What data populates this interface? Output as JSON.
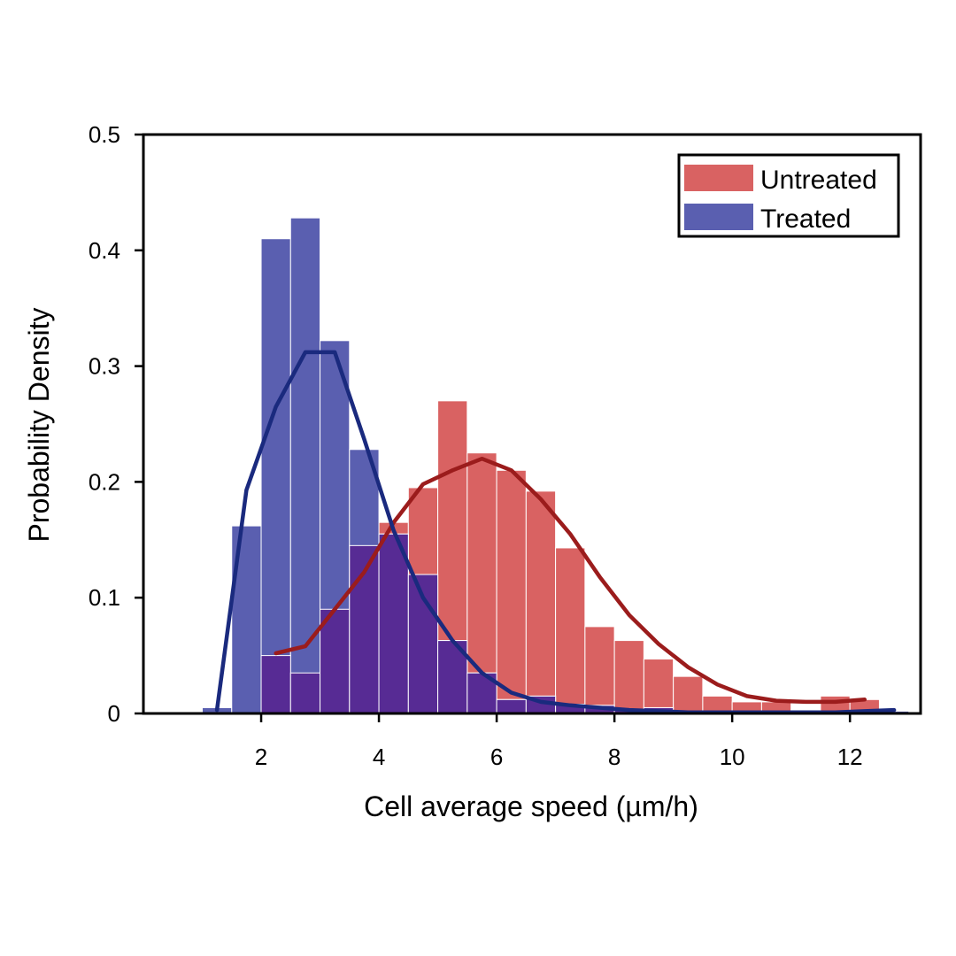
{
  "chart_data": {
    "type": "bar",
    "title": "",
    "xlabel": "Cell average speed (µm/h)",
    "ylabel": "Probability Density",
    "xlim": [
      0.0,
      13.2
    ],
    "ylim": [
      0,
      0.5
    ],
    "xticks": [
      2,
      4,
      6,
      8,
      10,
      12
    ],
    "yticks": [
      0,
      0.1,
      0.2,
      0.3,
      0.4,
      0.5
    ],
    "grid": false,
    "legend_position": "top-right",
    "bin_width": 0.5,
    "colors": {
      "untreated_bar": "#d96262",
      "treated_bar": "#5a5fb0",
      "overlap_bar": "#572b94",
      "untreated_curve": "#9b1c1c",
      "treated_curve": "#1a2a7e"
    },
    "series": [
      {
        "name": "Untreated",
        "bin_left_edges": [
          2.0,
          2.5,
          3.0,
          3.5,
          4.0,
          4.5,
          5.0,
          5.5,
          6.0,
          6.5,
          7.0,
          7.5,
          8.0,
          8.5,
          9.0,
          9.5,
          10.0,
          10.5,
          11.0,
          11.5,
          12.0
        ],
        "values": [
          0.05,
          0.035,
          0.09,
          0.145,
          0.165,
          0.195,
          0.27,
          0.225,
          0.21,
          0.192,
          0.143,
          0.075,
          0.063,
          0.047,
          0.032,
          0.015,
          0.01,
          0.01,
          0.003,
          0.015,
          0.012
        ],
        "curve_x": [
          2.25,
          2.75,
          3.25,
          3.75,
          4.25,
          4.75,
          5.25,
          5.75,
          6.25,
          6.75,
          7.25,
          7.75,
          8.25,
          8.75,
          9.25,
          9.75,
          10.25,
          10.75,
          11.25,
          11.75,
          12.25
        ],
        "curve_y": [
          0.052,
          0.058,
          0.09,
          0.122,
          0.165,
          0.198,
          0.21,
          0.22,
          0.21,
          0.185,
          0.155,
          0.118,
          0.085,
          0.06,
          0.04,
          0.025,
          0.015,
          0.011,
          0.01,
          0.01,
          0.012
        ]
      },
      {
        "name": "Treated",
        "bin_left_edges": [
          1.0,
          1.5,
          2.0,
          2.5,
          3.0,
          3.5,
          4.0,
          4.5,
          5.0,
          5.5,
          6.0,
          6.5,
          7.0,
          7.5,
          8.0,
          8.5,
          9.0,
          9.5,
          10.0,
          10.5,
          11.0,
          11.5,
          12.0,
          12.5
        ],
        "values": [
          0.005,
          0.162,
          0.41,
          0.428,
          0.322,
          0.228,
          0.155,
          0.12,
          0.063,
          0.035,
          0.012,
          0.015,
          0.008,
          0.007,
          0.003,
          0.005,
          0.002,
          0.002,
          0.001,
          0.001,
          0.001,
          0.001,
          0.001,
          0.002
        ],
        "curve_x": [
          1.25,
          1.75,
          2.25,
          2.75,
          3.25,
          3.75,
          4.25,
          4.75,
          5.25,
          5.75,
          6.25,
          6.75,
          7.25,
          7.75,
          8.25,
          8.75,
          9.25,
          9.75,
          10.25,
          10.75,
          11.25,
          11.75,
          12.25,
          12.75
        ],
        "curve_y": [
          0.003,
          0.193,
          0.265,
          0.312,
          0.312,
          0.237,
          0.158,
          0.1,
          0.063,
          0.035,
          0.018,
          0.01,
          0.007,
          0.005,
          0.003,
          0.002,
          0.001,
          0.001,
          0.001,
          0.001,
          0.001,
          0.001,
          0.002,
          0.003
        ]
      }
    ]
  }
}
